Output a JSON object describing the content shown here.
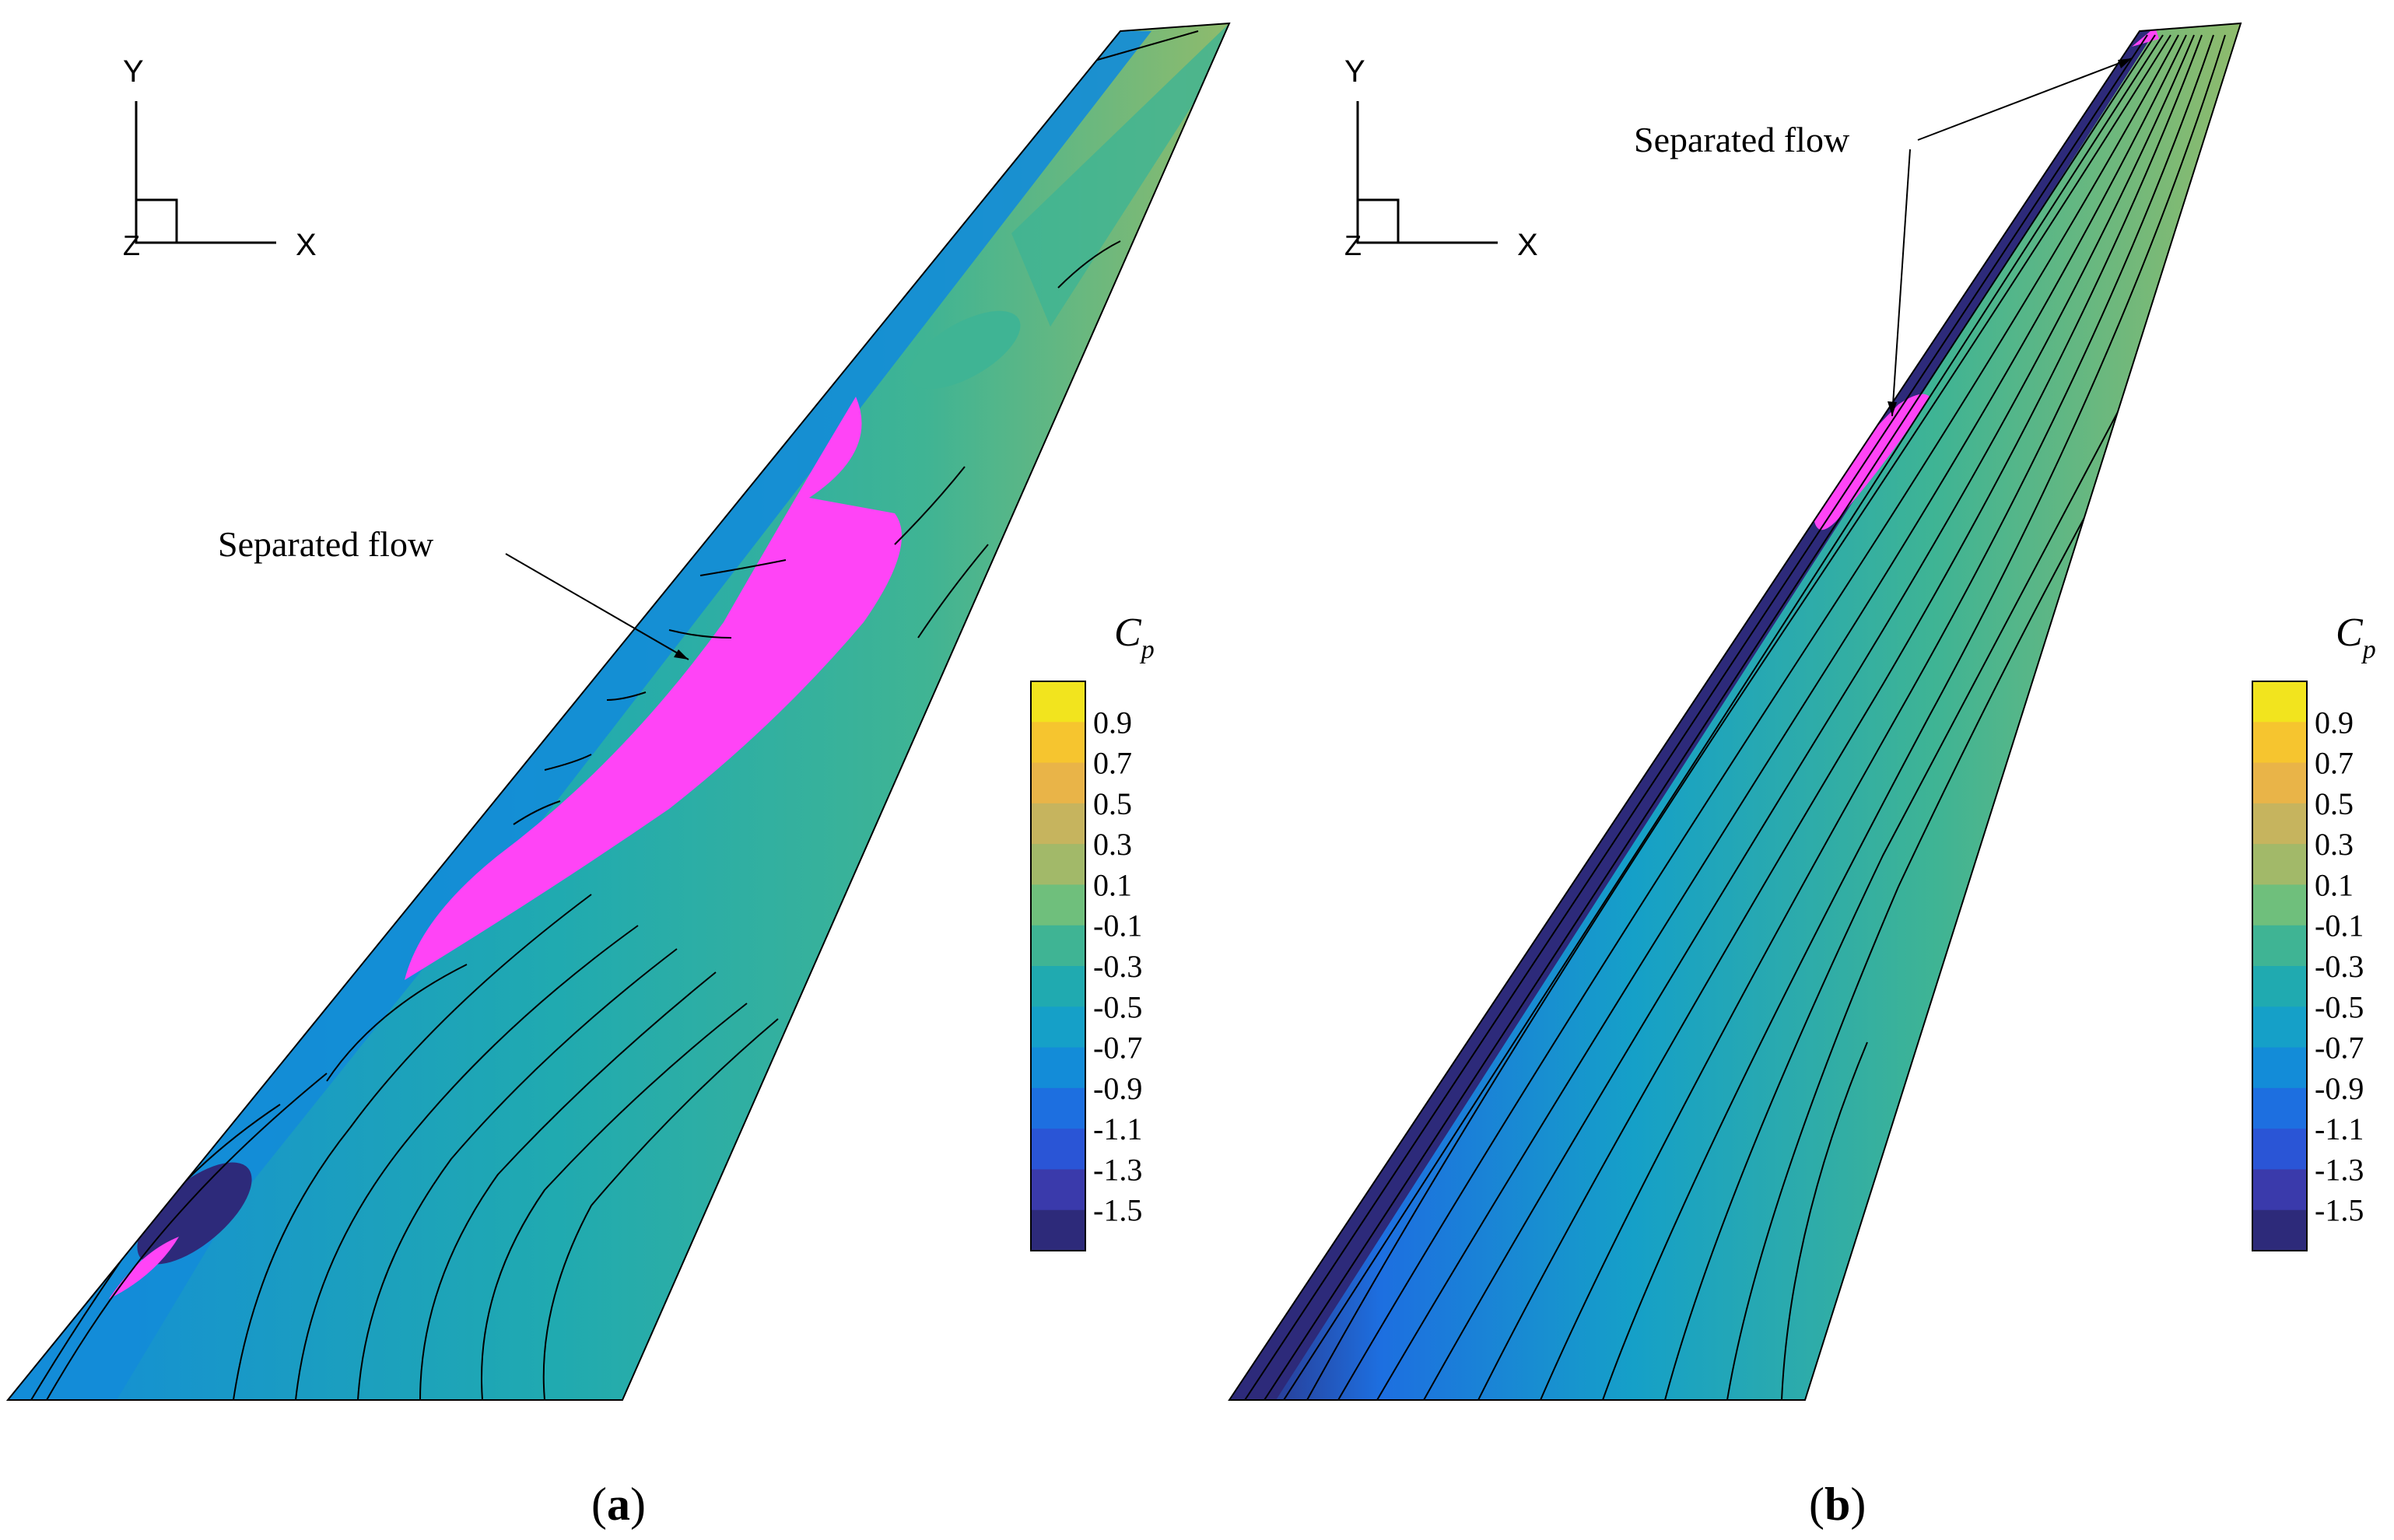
{
  "panels": [
    {
      "id": "a",
      "caption_open": "(",
      "caption_letter": "a",
      "caption_close": ")",
      "annotation": "Separated flow",
      "axes": {
        "y": "Y",
        "x": "X",
        "z": "Z"
      },
      "legend_title": "C",
      "legend_title_sub": "p"
    },
    {
      "id": "b",
      "caption_open": "(",
      "caption_letter": "b",
      "caption_close": ")",
      "annotation": "Separated flow",
      "axes": {
        "y": "Y",
        "x": "X",
        "z": "Z"
      },
      "legend_title": "C",
      "legend_title_sub": "p"
    }
  ],
  "legend": {
    "labels": [
      "0.9",
      "0.7",
      "0.5",
      "0.3",
      "0.1",
      "-0.1",
      "-0.3",
      "-0.5",
      "-0.7",
      "-0.9",
      "-1.1",
      "-1.3",
      "-1.5"
    ],
    "colors": [
      "#f2e41e",
      "#f6c52f",
      "#e9b448",
      "#c6b45e",
      "#a2b969",
      "#6fbf7c",
      "#3fb494",
      "#20aab0",
      "#15a0c8",
      "#138cd8",
      "#1d6fe0",
      "#2a55d6",
      "#3a3aab",
      "#2d2a7a"
    ]
  },
  "colors": {
    "separated": "#ff44f6",
    "contour_line": "#000000"
  }
}
